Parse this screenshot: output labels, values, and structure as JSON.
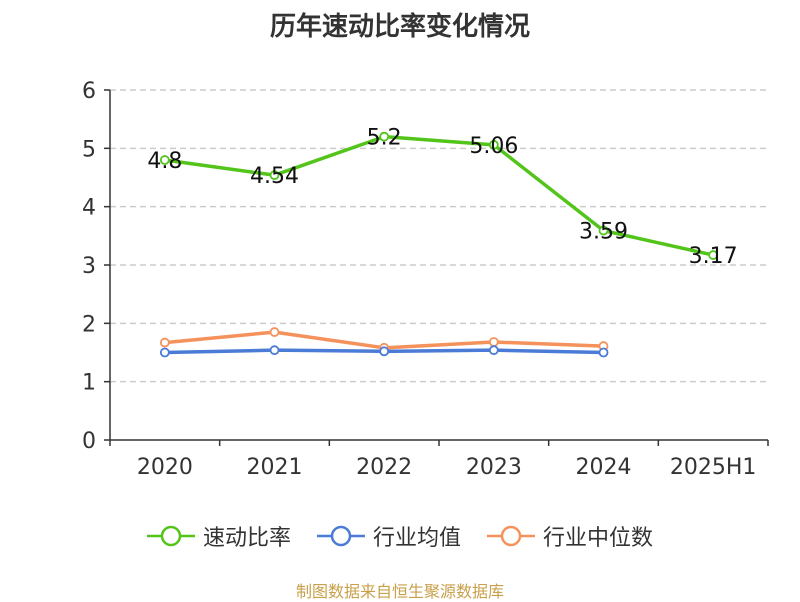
{
  "title": "历年速动比率变化情况",
  "source": "制图数据来自恒生聚源数据库",
  "chart_data": {
    "type": "line",
    "title": "历年速动比率变化情况",
    "categories": [
      "2020",
      "2021",
      "2022",
      "2023",
      "2024",
      "2025H1"
    ],
    "ylim": [
      0,
      6
    ],
    "yticks": [
      "0",
      "1",
      "2",
      "3",
      "4",
      "5",
      "6"
    ],
    "grid": true,
    "legend_position": "bottom",
    "series": [
      {
        "name": "速动比率",
        "color": "#52c41a",
        "values": [
          4.8,
          4.54,
          5.2,
          5.06,
          3.59,
          3.17
        ],
        "labels": [
          "4.8",
          "4.54",
          "5.2",
          "5.06",
          "3.59",
          "3.17"
        ]
      },
      {
        "name": "行业均值",
        "color": "#4a7bd6",
        "values": [
          1.5,
          1.54,
          1.52,
          1.54,
          1.5,
          null
        ]
      },
      {
        "name": "行业中位数",
        "color": "#f5915b",
        "values": [
          1.67,
          1.85,
          1.58,
          1.68,
          1.61,
          null
        ]
      }
    ]
  }
}
